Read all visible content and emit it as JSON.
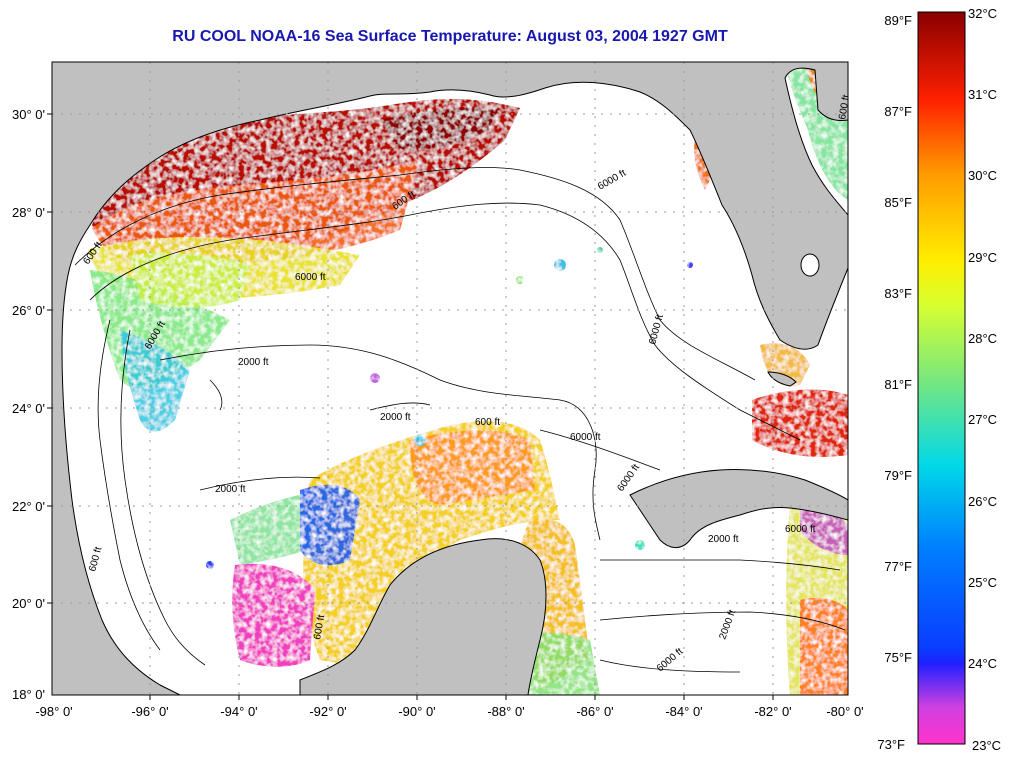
{
  "title": "RU COOL  NOAA-16  Sea Surface Temperature:  August 03, 2004 1927 GMT",
  "map": {
    "lon_ticks": [
      "-98° 0'",
      "-96° 0'",
      "-94° 0'",
      "-92° 0'",
      "-90° 0'",
      "-88° 0'",
      "-86° 0'",
      "-84° 0'",
      "-82° 0'",
      "-80° 0'"
    ],
    "lat_ticks": [
      "30° 0'",
      "28° 0'",
      "26° 0'",
      "24° 0'",
      "22° 0'",
      "20° 0'",
      "18° 0'"
    ],
    "contour_labels": [
      "600 ft",
      "600 ft",
      "6000 ft",
      "6000 ft",
      "6000 ft",
      "6000 ft",
      "2000 ft",
      "2000 ft",
      "600 ft",
      "6000 ft",
      "2000 ft",
      "6000 ft",
      "600 ft",
      "600 ft",
      "2000 ft",
      "2000 ft",
      "6000 ft",
      "6000 ft",
      "600 ft"
    ],
    "colors": {
      "land": "#c0c0c0",
      "ocean_no_data": "#ffffff",
      "grid": "#9a9a9a",
      "title": "#1818b0"
    }
  },
  "colorbar": {
    "f_labels": [
      "89°F",
      "87°F",
      "85°F",
      "83°F",
      "81°F",
      "79°F",
      "77°F",
      "75°F",
      "73°F"
    ],
    "c_labels": [
      "32°C",
      "31°C",
      "30°C",
      "29°C",
      "28°C",
      "27°C",
      "26°C",
      "25°C",
      "24°C",
      "23°C"
    ],
    "scale_f": [
      73,
      89
    ],
    "scale_c": [
      23,
      32
    ]
  }
}
